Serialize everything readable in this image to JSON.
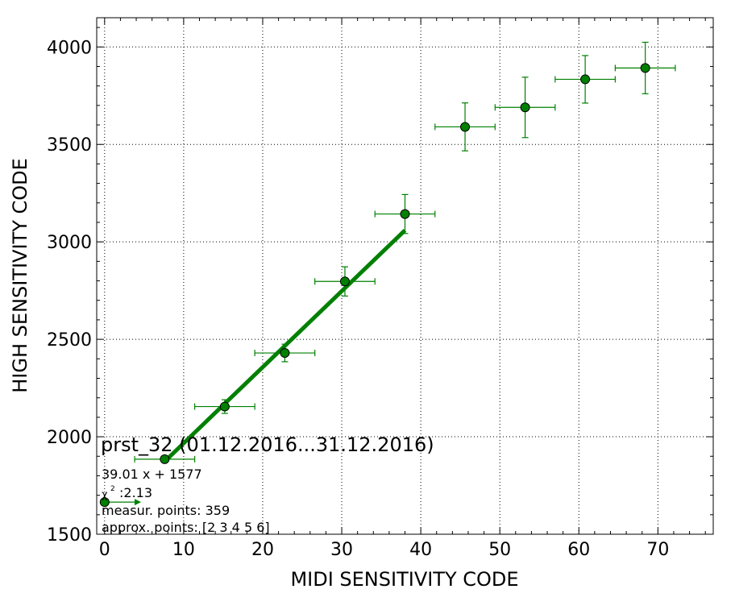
{
  "chart_data": {
    "type": "scatter",
    "title": "prst_32 (01.12.2016...31.12.2016)",
    "xlabel": "MIDI SENSITIVITY CODE",
    "ylabel": "HIGH SENSITIVITY CODE",
    "xlim": [
      -1,
      77
    ],
    "ylim": [
      1500,
      4150
    ],
    "xticks": [
      0,
      10,
      20,
      30,
      40,
      50,
      60,
      70
    ],
    "yticks": [
      1500,
      2000,
      2500,
      3000,
      3500,
      4000
    ],
    "grid": true,
    "colors": {
      "series": "#008000",
      "marker_fill": "#008000",
      "marker_edge": "#000000"
    },
    "series": [
      {
        "points": [
          {
            "x": 0,
            "y": 1665,
            "xerr_lo": 0,
            "xerr_hi": 4,
            "yerr": 0
          },
          {
            "x": 7.6,
            "y": 1885,
            "xerr_lo": 3.8,
            "xerr_hi": 3.8,
            "yerr": 0
          },
          {
            "x": 15.2,
            "y": 2155,
            "xerr_lo": 3.8,
            "xerr_hi": 3.8,
            "yerr": 35
          },
          {
            "x": 22.8,
            "y": 2430,
            "xerr_lo": 3.8,
            "xerr_hi": 3.8,
            "yerr": 45
          },
          {
            "x": 30.4,
            "y": 2797,
            "xerr_lo": 3.8,
            "xerr_hi": 3.8,
            "yerr": 75
          },
          {
            "x": 38.0,
            "y": 3143,
            "xerr_lo": 3.8,
            "xerr_hi": 3.8,
            "yerr": 100
          },
          {
            "x": 45.6,
            "y": 3590,
            "xerr_lo": 3.8,
            "xerr_hi": 3.8,
            "yerr": 123
          },
          {
            "x": 53.2,
            "y": 3690,
            "xerr_lo": 3.8,
            "xerr_hi": 3.8,
            "yerr": 155
          },
          {
            "x": 60.8,
            "y": 3834,
            "xerr_lo": 3.8,
            "xerr_hi": 3.8,
            "yerr": 122
          },
          {
            "x": 68.4,
            "y": 3892,
            "xerr_lo": 3.8,
            "xerr_hi": 3.8,
            "yerr": 132
          }
        ]
      }
    ],
    "fit_line": {
      "x": [
        7.6,
        38.0
      ],
      "slope": 39.01,
      "intercept": 1577
    },
    "annotations": [
      "39.01 x + 1577",
      ":2.13",
      "measur. points: 359",
      "approx. points: [2 3 4 5 6]"
    ],
    "chi_symbol": "χ",
    "chi_sup": "2"
  }
}
